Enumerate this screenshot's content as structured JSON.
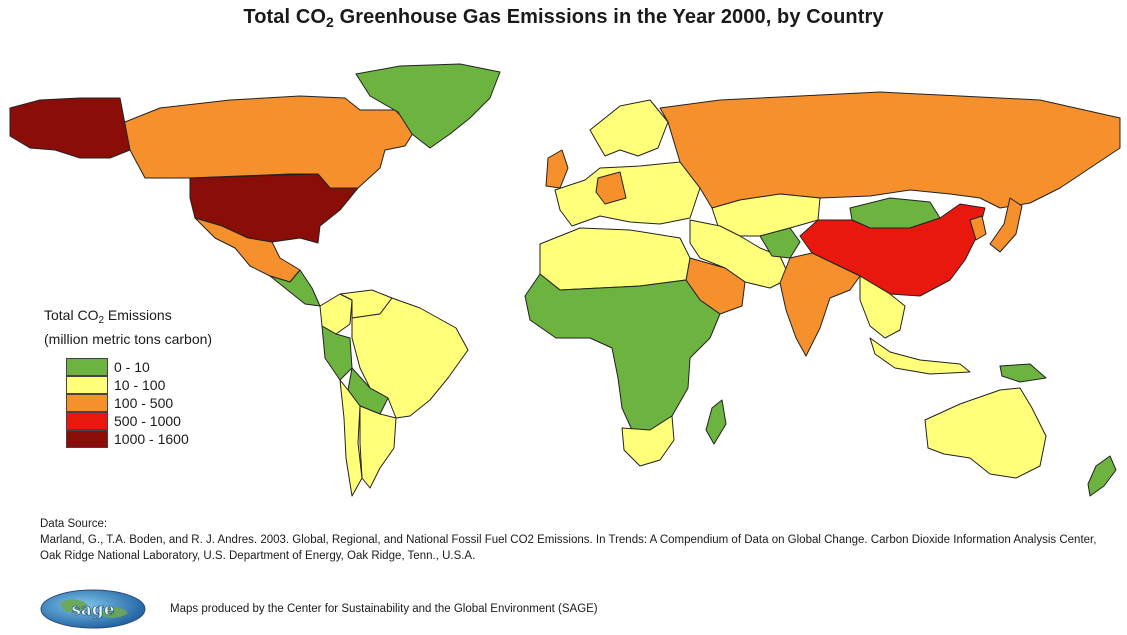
{
  "title": {
    "prefix": "Total CO",
    "sub": "2",
    "suffix": " Greenhouse Gas Emissions in the Year 2000, by Country"
  },
  "legend": {
    "title_prefix": "Total CO",
    "title_sub": "2",
    "title_suffix": " Emissions",
    "subtitle": "(million metric tons carbon)",
    "classes": [
      {
        "label": "0 - 10",
        "color": "#6db33f"
      },
      {
        "label": "10 - 100",
        "color": "#ffff7a"
      },
      {
        "label": "100 - 500",
        "color": "#f5902d"
      },
      {
        "label": "500 - 1000",
        "color": "#e8180f"
      },
      {
        "label": "1000 - 1600",
        "color": "#8b0d07"
      }
    ]
  },
  "source": {
    "heading": "Data Source:",
    "citation": "Marland, G., T.A. Boden, and R. J. Andres. 2003. Global, Regional, and National Fossil Fuel CO2 Emissions. In Trends: A Compendium of Data on Global Change. Carbon Dioxide Information Analysis Center, Oak Ridge National Laboratory, U.S. Department of Energy, Oak Ridge, Tenn., U.S.A."
  },
  "credit": {
    "logo_text": "sage",
    "text": "Maps produced by the Center for Sustainability and the Global Environment (SAGE)"
  },
  "map_regions": [
    {
      "name": "Alaska",
      "class": 4
    },
    {
      "name": "Canada",
      "class": 2
    },
    {
      "name": "United States",
      "class": 4
    },
    {
      "name": "Mexico",
      "class": 2
    },
    {
      "name": "Central America",
      "class": 0
    },
    {
      "name": "Greenland",
      "class": 0
    },
    {
      "name": "Colombia",
      "class": 1
    },
    {
      "name": "Venezuela",
      "class": 1
    },
    {
      "name": "Peru",
      "class": 0
    },
    {
      "name": "Brazil",
      "class": 1
    },
    {
      "name": "Bolivia",
      "class": 0
    },
    {
      "name": "Argentina",
      "class": 1
    },
    {
      "name": "Chile",
      "class": 1
    },
    {
      "name": "Scandinavia",
      "class": 1
    },
    {
      "name": "United Kingdom",
      "class": 2
    },
    {
      "name": "Western Europe",
      "class": 1
    },
    {
      "name": "Germany",
      "class": 2
    },
    {
      "name": "Russia",
      "class": 2
    },
    {
      "name": "Kazakhstan",
      "class": 1
    },
    {
      "name": "Mongolia",
      "class": 0
    },
    {
      "name": "China",
      "class": 3
    },
    {
      "name": "India",
      "class": 2
    },
    {
      "name": "Japan",
      "class": 2
    },
    {
      "name": "Korea",
      "class": 2
    },
    {
      "name": "Middle East",
      "class": 1
    },
    {
      "name": "Saudi Arabia",
      "class": 2
    },
    {
      "name": "Afghanistan",
      "class": 0
    },
    {
      "name": "North Africa",
      "class": 1
    },
    {
      "name": "Sub-Saharan Africa",
      "class": 0
    },
    {
      "name": "South Africa",
      "class": 1
    },
    {
      "name": "Madagascar",
      "class": 0
    },
    {
      "name": "Southeast Asia",
      "class": 1
    },
    {
      "name": "Indonesia",
      "class": 1
    },
    {
      "name": "Papua New Guinea",
      "class": 0
    },
    {
      "name": "Australia",
      "class": 1
    },
    {
      "name": "New Zealand",
      "class": 0
    }
  ]
}
